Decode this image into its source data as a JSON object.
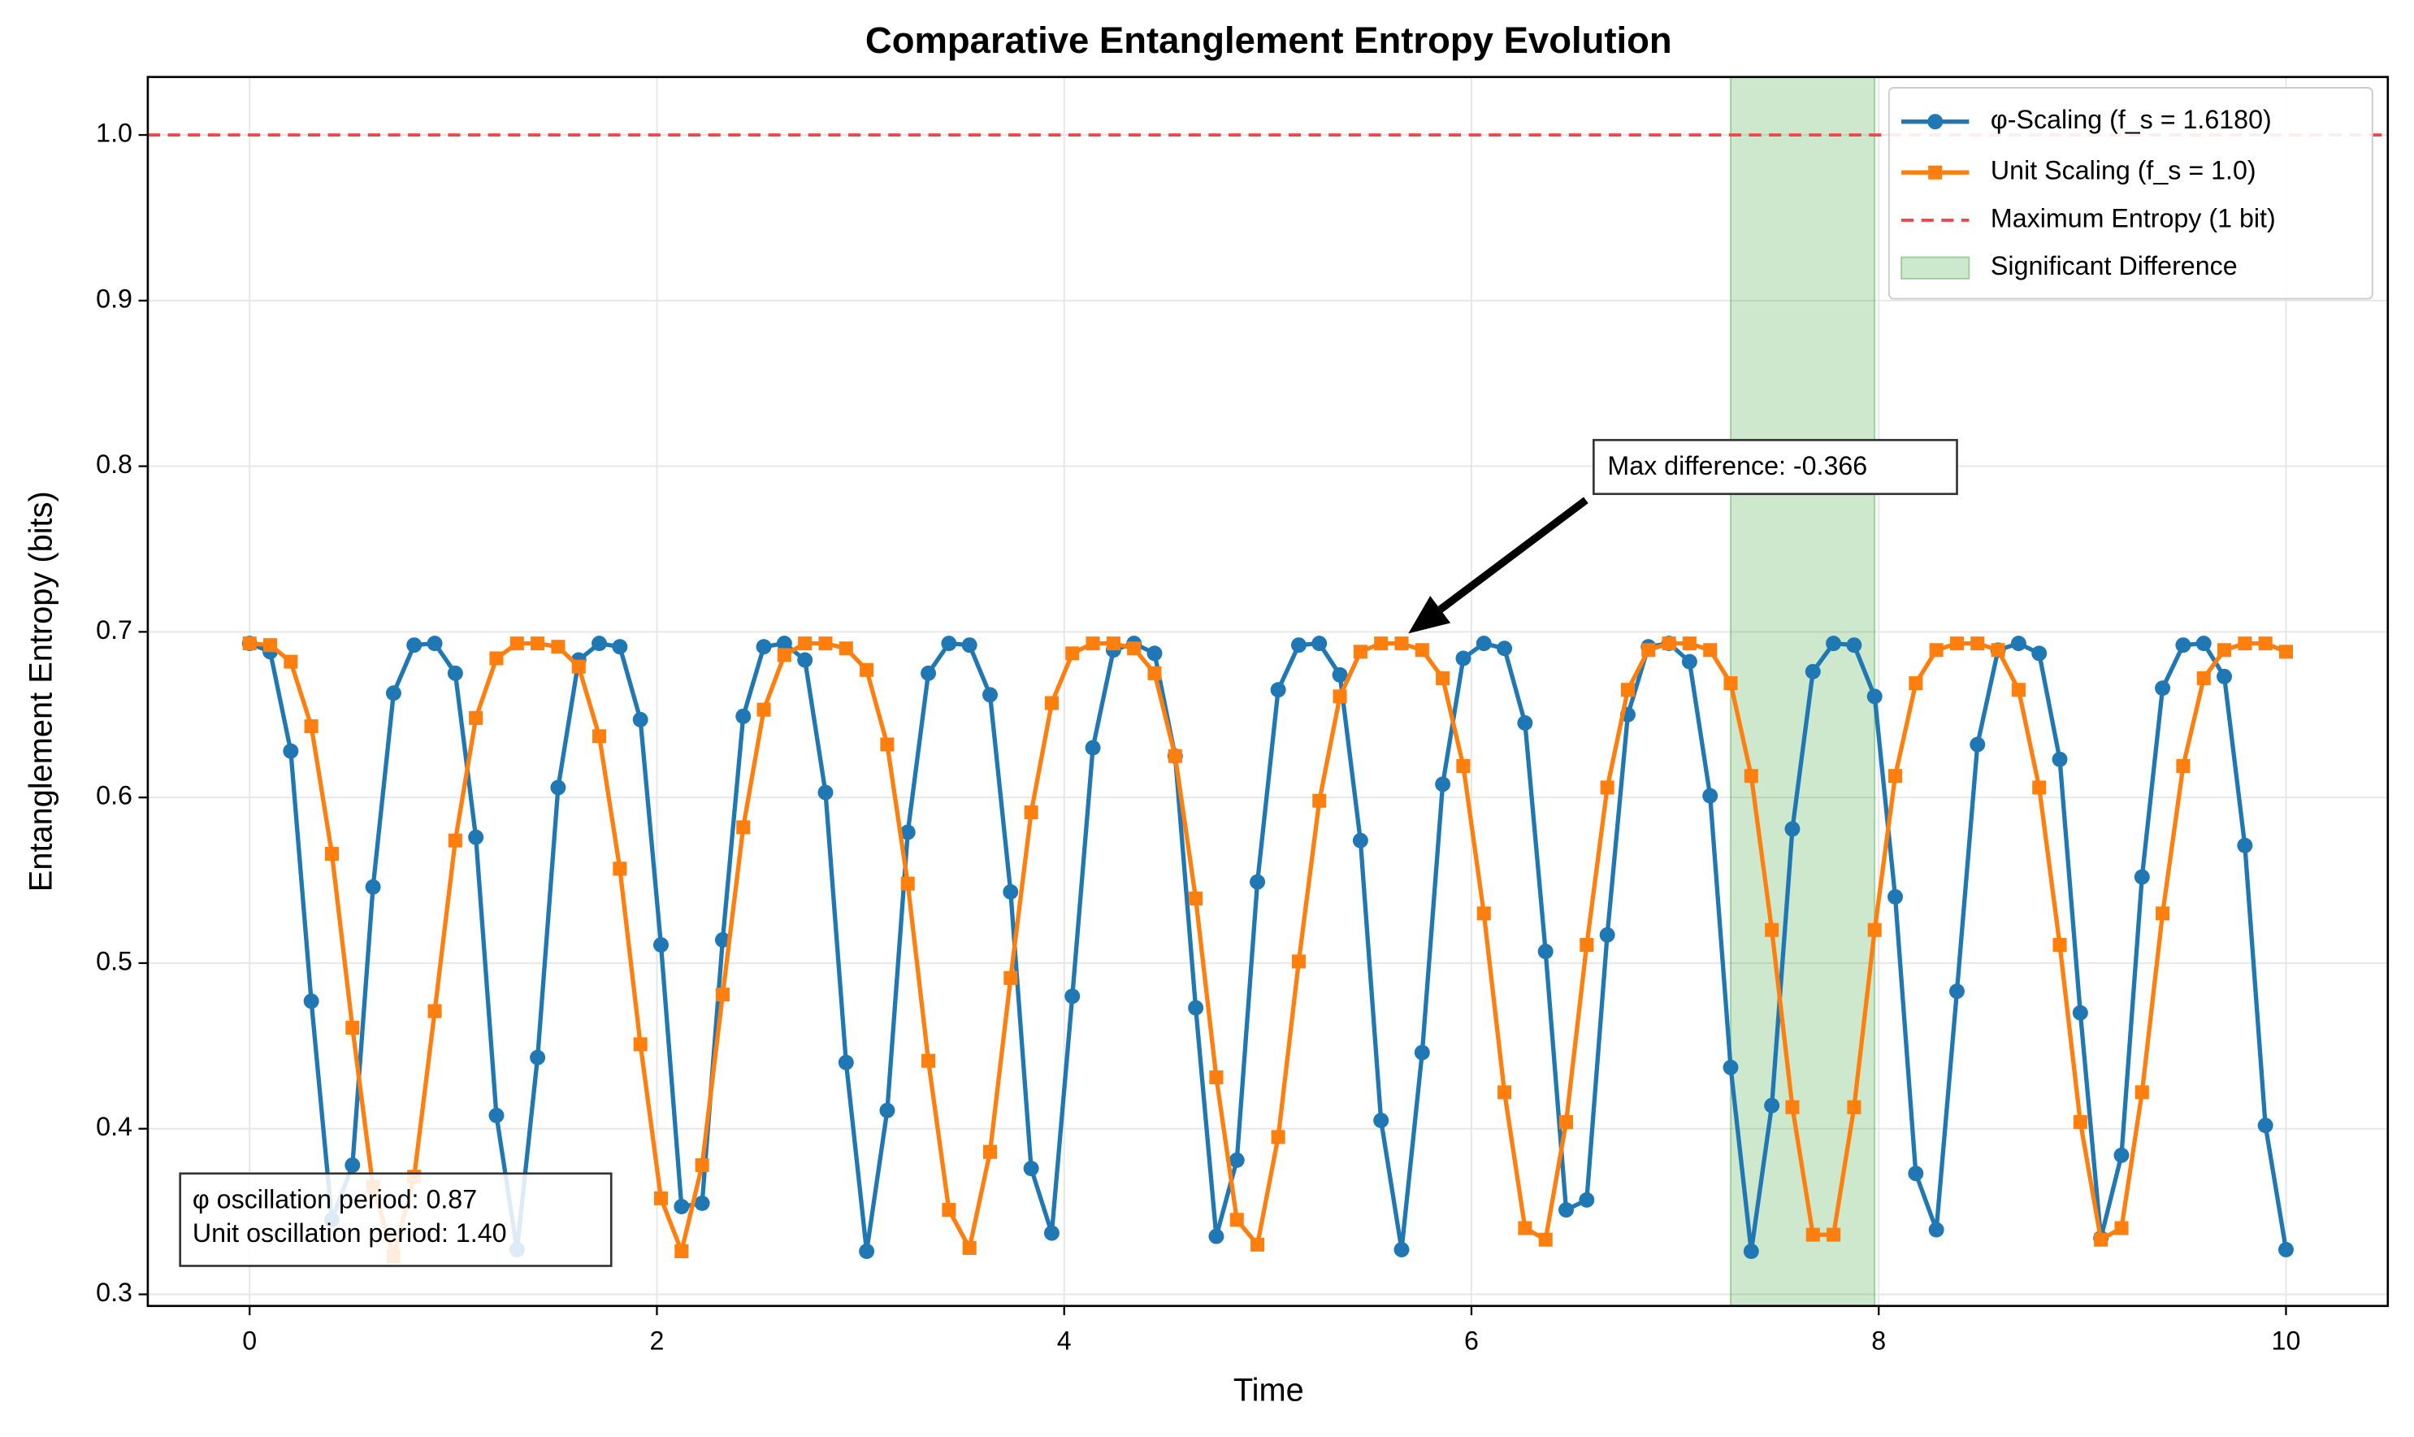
{
  "chart_data": {
    "type": "line",
    "title": "Comparative Entanglement Entropy Evolution",
    "xlabel": "Time",
    "ylabel": "Entanglement Entropy (bits)",
    "x": [
      0,
      0.101,
      0.202,
      0.303,
      0.404,
      0.505,
      0.606,
      0.707,
      0.808,
      0.909,
      1.01,
      1.111,
      1.212,
      1.313,
      1.414,
      1.515,
      1.616,
      1.717,
      1.818,
      1.919,
      2.02,
      2.121,
      2.222,
      2.323,
      2.424,
      2.525,
      2.626,
      2.727,
      2.828,
      2.929,
      3.03,
      3.131,
      3.232,
      3.333,
      3.434,
      3.535,
      3.636,
      3.737,
      3.838,
      3.939,
      4.04,
      4.141,
      4.242,
      4.343,
      4.444,
      4.545,
      4.646,
      4.747,
      4.848,
      4.949,
      5.051,
      5.152,
      5.253,
      5.354,
      5.455,
      5.556,
      5.657,
      5.758,
      5.859,
      5.96,
      6.061,
      6.162,
      6.263,
      6.364,
      6.465,
      6.566,
      6.667,
      6.768,
      6.869,
      6.97,
      7.071,
      7.172,
      7.273,
      7.374,
      7.475,
      7.576,
      7.677,
      7.778,
      7.879,
      7.98,
      8.081,
      8.182,
      8.283,
      8.384,
      8.485,
      8.586,
      8.687,
      8.788,
      8.889,
      8.99,
      9.091,
      9.192,
      9.293,
      9.394,
      9.495,
      9.596,
      9.697,
      9.798,
      9.899,
      10
    ],
    "series": [
      {
        "name": "φ-Scaling (f_s = 1.6180)",
        "color": "#1f77b4",
        "marker": "circle",
        "values": [
          0.693,
          0.688,
          0.628,
          0.477,
          0.345,
          0.378,
          0.546,
          0.663,
          0.692,
          0.693,
          0.675,
          0.576,
          0.408,
          0.327,
          0.443,
          0.606,
          0.683,
          0.693,
          0.691,
          0.647,
          0.511,
          0.353,
          0.355,
          0.514,
          0.649,
          0.691,
          0.693,
          0.683,
          0.603,
          0.44,
          0.326,
          0.411,
          0.579,
          0.675,
          0.693,
          0.692,
          0.662,
          0.543,
          0.376,
          0.337,
          0.48,
          0.63,
          0.689,
          0.693,
          0.687,
          0.625,
          0.473,
          0.335,
          0.381,
          0.549,
          0.665,
          0.692,
          0.693,
          0.674,
          0.574,
          0.405,
          0.327,
          0.446,
          0.608,
          0.684,
          0.693,
          0.69,
          0.645,
          0.507,
          0.351,
          0.357,
          0.517,
          0.65,
          0.691,
          0.693,
          0.682,
          0.601,
          0.437,
          0.326,
          0.414,
          0.581,
          0.676,
          0.693,
          0.692,
          0.661,
          0.54,
          0.373,
          0.339,
          0.483,
          0.632,
          0.689,
          0.693,
          0.687,
          0.623,
          0.47,
          0.334,
          0.384,
          0.552,
          0.666,
          0.692,
          0.693,
          0.673,
          0.571,
          0.402,
          0.327
        ]
      },
      {
        "name": "Unit Scaling (f_s = 1.0)",
        "color": "#ff7f0e",
        "marker": "square",
        "values": [
          0.693,
          0.692,
          0.682,
          0.643,
          0.566,
          0.461,
          0.365,
          0.323,
          0.371,
          0.471,
          0.574,
          0.648,
          0.684,
          0.693,
          0.693,
          0.691,
          0.679,
          0.637,
          0.557,
          0.451,
          0.358,
          0.326,
          0.378,
          0.481,
          0.582,
          0.653,
          0.686,
          0.693,
          0.693,
          0.69,
          0.677,
          0.632,
          0.548,
          0.441,
          0.351,
          0.328,
          0.386,
          0.491,
          0.591,
          0.657,
          0.687,
          0.693,
          0.693,
          0.69,
          0.675,
          0.625,
          0.539,
          0.431,
          0.345,
          0.33,
          0.395,
          0.501,
          0.598,
          0.661,
          0.688,
          0.693,
          0.693,
          0.689,
          0.672,
          0.619,
          0.53,
          0.422,
          0.34,
          0.333,
          0.404,
          0.511,
          0.606,
          0.665,
          0.689,
          0.693,
          0.693,
          0.689,
          0.669,
          0.613,
          0.52,
          0.413,
          0.336,
          0.336,
          0.413,
          0.52,
          0.613,
          0.669,
          0.689,
          0.693,
          0.693,
          0.689,
          0.665,
          0.606,
          0.511,
          0.404,
          0.333,
          0.34,
          0.422,
          0.53,
          0.619,
          0.672,
          0.689,
          0.693,
          0.693,
          0.688
        ]
      }
    ],
    "hline": {
      "y": 1,
      "label": "Maximum Entropy (1 bit)",
      "color": "#f04848"
    },
    "span": {
      "x0": 7.273,
      "x1": 7.98,
      "label": "Significant Difference",
      "color": "#2ca02c"
    },
    "annotation": {
      "text": "Max difference: -0.366",
      "xy": [
        5.69,
        0.699
      ],
      "xytext": [
        6.6,
        0.8
      ]
    },
    "text_box": [
      "φ oscillation period: 0.87",
      "Unit oscillation period: 1.40"
    ],
    "xlim": [
      -0.5,
      10.5
    ],
    "ylim": [
      0.293,
      1.035
    ],
    "xticks": [
      0,
      2,
      4,
      6,
      8,
      10
    ],
    "yticks": [
      0.3,
      0.4,
      0.5,
      0.6,
      0.7,
      0.8,
      0.9,
      {
        "value": 1,
        "label": "1.0"
      }
    ],
    "grid": true,
    "legend": "upper right"
  }
}
